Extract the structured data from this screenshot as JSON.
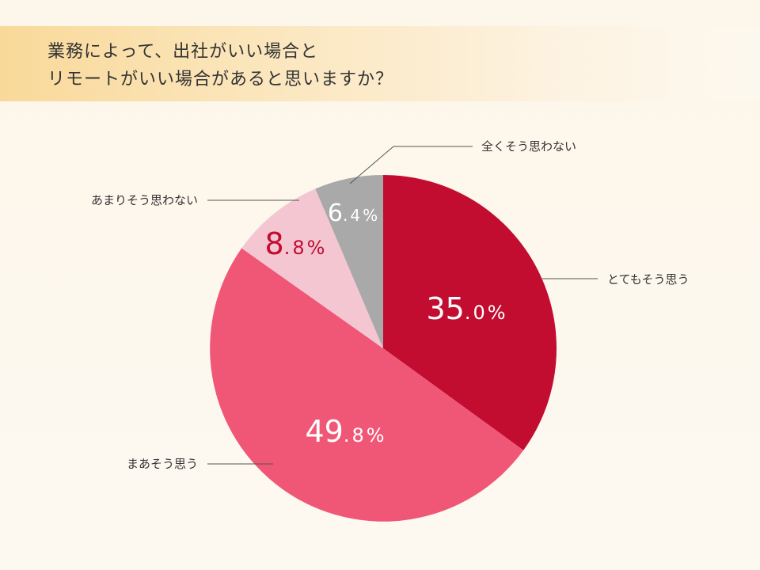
{
  "title": {
    "line1": "業務によって、出社がいい場合と",
    "line2": "リモートがいい場合があると思いますか？"
  },
  "chart_data": {
    "type": "pie",
    "title": "業務によって、出社がいい場合とリモートがいい場合があると思いますか？",
    "start": "12 o'clock, clockwise",
    "slices": [
      {
        "label": "とてもそう思う",
        "value": 35.0,
        "display": {
          "int": "35",
          "dec": ".0",
          "unit": "%"
        },
        "color": "#c20c30",
        "text_color": "#ffffff"
      },
      {
        "label": "まあそう思う",
        "value": 49.8,
        "display": {
          "int": "49",
          "dec": ".8",
          "unit": "%"
        },
        "color": "#f05777",
        "text_color": "#ffffff"
      },
      {
        "label": "あまりそう思わない",
        "value": 8.8,
        "display": {
          "int": "8",
          "dec": ".8",
          "unit": "%"
        },
        "color": "#f4c6d2",
        "text_color": "#c20c30"
      },
      {
        "label": "全くそう思わない",
        "value": 6.4,
        "display": {
          "int": "6",
          "dec": ".4",
          "unit": "%"
        },
        "color": "#a9a9a9",
        "text_color": "#ffffff"
      }
    ]
  }
}
